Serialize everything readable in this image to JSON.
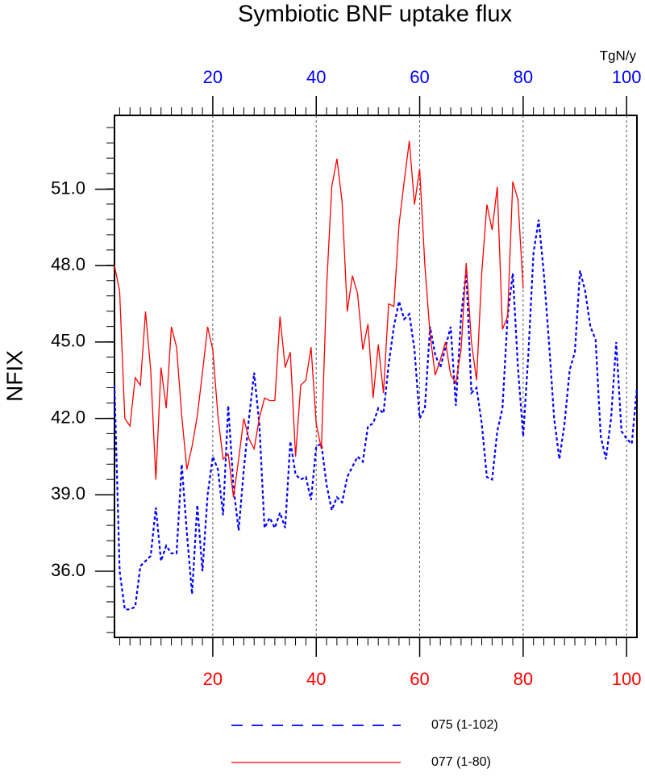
{
  "chart_data": {
    "type": "line",
    "title": "Symbiotic BNF uptake flux",
    "ylabel": "NFIX",
    "x2label": "TgN/y",
    "xlim": [
      1,
      102
    ],
    "ylim": [
      33.4,
      53.9
    ],
    "xticks": [
      20,
      40,
      60,
      80,
      100
    ],
    "x2ticks": [
      20,
      40,
      60,
      80,
      100
    ],
    "yticks": [
      {
        "value": 36,
        "label": "36.0"
      },
      {
        "value": 39,
        "label": "39.0"
      },
      {
        "value": 42,
        "label": "42.0"
      },
      {
        "value": 45,
        "label": "45.0"
      },
      {
        "value": 48,
        "label": "48.0"
      },
      {
        "value": 51,
        "label": "51.0"
      }
    ],
    "grid": true,
    "series": [
      {
        "name": "075 (1-102)",
        "color": "#0000ff",
        "dashed": true,
        "axis": "x2",
        "x": [
          1,
          2,
          3,
          4,
          5,
          6,
          7,
          8,
          9,
          10,
          11,
          12,
          13,
          14,
          15,
          16,
          17,
          18,
          19,
          20,
          21,
          22,
          23,
          24,
          25,
          26,
          27,
          28,
          29,
          30,
          31,
          32,
          33,
          34,
          35,
          36,
          37,
          38,
          39,
          40,
          41,
          42,
          43,
          44,
          45,
          46,
          47,
          48,
          49,
          50,
          51,
          52,
          53,
          54,
          55,
          56,
          57,
          58,
          59,
          60,
          61,
          62,
          63,
          64,
          65,
          66,
          67,
          68,
          69,
          70,
          71,
          72,
          73,
          74,
          75,
          76,
          77,
          78,
          79,
          80,
          81,
          82,
          83,
          84,
          85,
          86,
          87,
          88,
          89,
          90,
          91,
          92,
          93,
          94,
          95,
          96,
          97,
          98,
          99,
          100,
          101,
          102
        ],
        "values": [
          43.3,
          36.0,
          34.5,
          34.5,
          34.6,
          36.2,
          36.4,
          36.6,
          38.5,
          36.4,
          37.0,
          36.7,
          36.7,
          40.2,
          37.5,
          35.1,
          38.6,
          36.0,
          39.0,
          40.5,
          40.0,
          38.2,
          42.5,
          39.3,
          37.6,
          40.0,
          42.0,
          43.8,
          41.8,
          37.7,
          38.1,
          37.7,
          38.3,
          37.7,
          41.1,
          39.8,
          39.6,
          39.7,
          38.8,
          40.9,
          41.0,
          39.4,
          38.4,
          38.9,
          38.7,
          39.7,
          40.1,
          40.5,
          40.3,
          41.7,
          41.8,
          42.4,
          42.2,
          44.1,
          45.6,
          46.6,
          45.9,
          46.1,
          44.7,
          42.0,
          42.4,
          45.6,
          44.5,
          44.0,
          44.8,
          45.6,
          42.5,
          46.0,
          47.8,
          43.0,
          43.2,
          41.8,
          39.7,
          39.6,
          41.5,
          42.4,
          46.0,
          47.7,
          44.0,
          41.3,
          44.5,
          48.5,
          49.8,
          47.7,
          45.0,
          42.0,
          40.4,
          41.8,
          43.9,
          44.6,
          47.8,
          47.0,
          45.6,
          45.1,
          41.3,
          40.4,
          42.0,
          45.0,
          41.5,
          41.2,
          41.0,
          43.2
        ]
      },
      {
        "name": "077 (1-80)",
        "color": "#ff0000",
        "dashed": false,
        "axis": "x",
        "x": [
          1,
          2,
          3,
          4,
          5,
          6,
          7,
          8,
          9,
          10,
          11,
          12,
          13,
          14,
          15,
          16,
          17,
          18,
          19,
          20,
          21,
          22,
          23,
          24,
          25,
          26,
          27,
          28,
          29,
          30,
          31,
          32,
          33,
          34,
          35,
          36,
          37,
          38,
          39,
          40,
          41,
          42,
          43,
          44,
          45,
          46,
          47,
          48,
          49,
          50,
          51,
          52,
          53,
          54,
          55,
          56,
          57,
          58,
          59,
          60,
          61,
          62,
          63,
          64,
          65,
          66,
          67,
          68,
          69,
          70,
          71,
          72,
          73,
          74,
          75,
          76,
          77,
          78,
          79,
          80
        ],
        "values": [
          48.0,
          47.0,
          42.0,
          41.7,
          43.6,
          43.3,
          46.2,
          43.9,
          39.6,
          44.0,
          42.4,
          45.6,
          44.8,
          42.1,
          40.0,
          40.9,
          42.1,
          43.8,
          45.6,
          44.7,
          42.1,
          40.4,
          40.6,
          38.9,
          40.4,
          42.0,
          41.2,
          40.8,
          42.0,
          42.8,
          42.7,
          42.7,
          46.0,
          44.0,
          44.6,
          40.5,
          43.3,
          43.5,
          44.8,
          41.8,
          40.8,
          47.1,
          51.1,
          52.2,
          50.5,
          46.2,
          47.6,
          46.9,
          44.7,
          45.7,
          42.8,
          44.9,
          43.0,
          46.5,
          46.4,
          49.6,
          51.3,
          52.9,
          50.4,
          51.8,
          48.0,
          45.3,
          43.7,
          44.3,
          45.0,
          43.7,
          43.4,
          44.7,
          48.1,
          45.0,
          43.5,
          47.7,
          50.4,
          49.4,
          51.1,
          45.5,
          46.0,
          51.3,
          50.6,
          47.1
        ]
      }
    ]
  }
}
